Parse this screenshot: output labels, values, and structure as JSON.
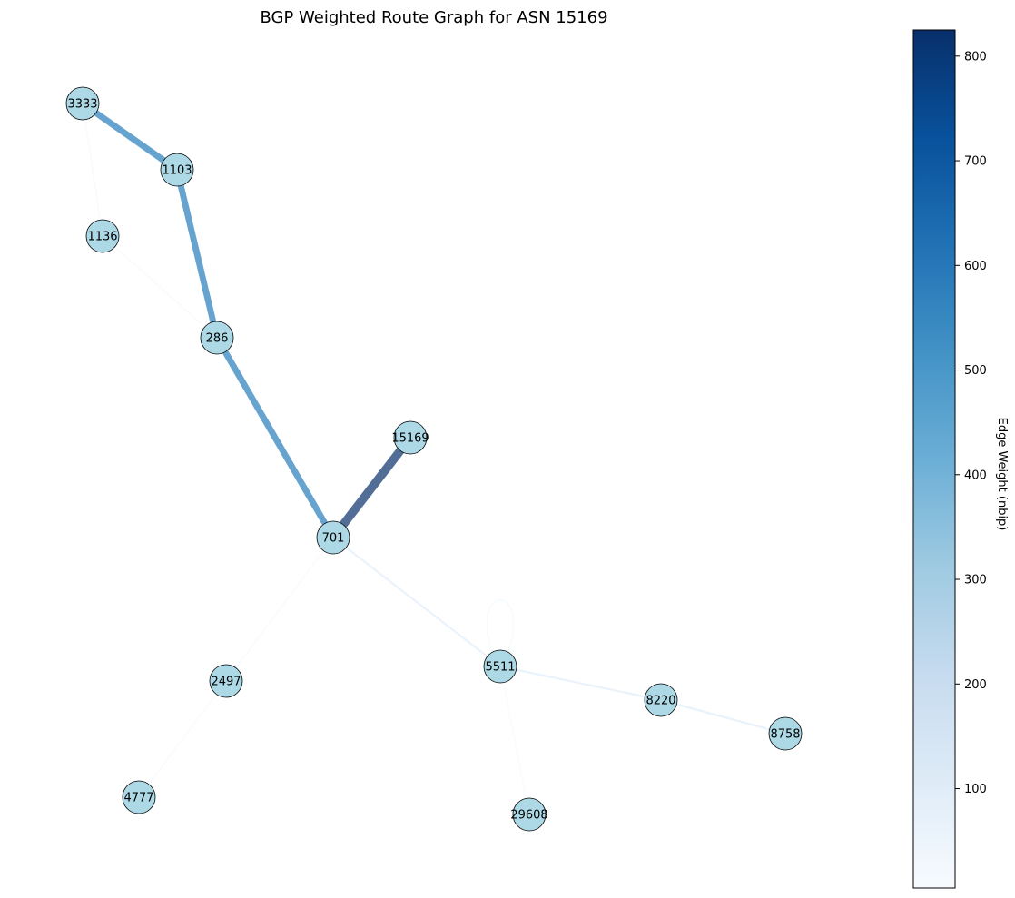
{
  "chart_data": {
    "type": "network",
    "title": "BGP Weighted Route Graph for ASN 15169",
    "colorbar": {
      "label": "Edge Weight (nbip)",
      "colormap": "Blues",
      "range": [
        5,
        825
      ],
      "ticks": [
        100,
        200,
        300,
        400,
        500,
        600,
        700,
        800
      ]
    },
    "node_color": "#add8e6",
    "nodes": [
      {
        "id": "3333"
      },
      {
        "id": "1103"
      },
      {
        "id": "1136"
      },
      {
        "id": "286"
      },
      {
        "id": "15169"
      },
      {
        "id": "701"
      },
      {
        "id": "2497"
      },
      {
        "id": "4777"
      },
      {
        "id": "5511"
      },
      {
        "id": "8220"
      },
      {
        "id": "8758"
      },
      {
        "id": "29608"
      }
    ],
    "edges": [
      {
        "source": "3333",
        "target": "1103",
        "weight": 560
      },
      {
        "source": "1103",
        "target": "286",
        "weight": 560
      },
      {
        "source": "286",
        "target": "701",
        "weight": 560
      },
      {
        "source": "701",
        "target": "15169",
        "weight": 825
      },
      {
        "source": "3333",
        "target": "1136",
        "weight": 15
      },
      {
        "source": "1136",
        "target": "286",
        "weight": 15
      },
      {
        "source": "701",
        "target": "5511",
        "weight": 85
      },
      {
        "source": "5511",
        "target": "5511",
        "weight": 20
      },
      {
        "source": "5511",
        "target": "8220",
        "weight": 85
      },
      {
        "source": "8220",
        "target": "8758",
        "weight": 85
      },
      {
        "source": "701",
        "target": "2497",
        "weight": 15
      },
      {
        "source": "2497",
        "target": "4777",
        "weight": 10
      },
      {
        "source": "5511",
        "target": "29608",
        "weight": 10
      }
    ]
  }
}
